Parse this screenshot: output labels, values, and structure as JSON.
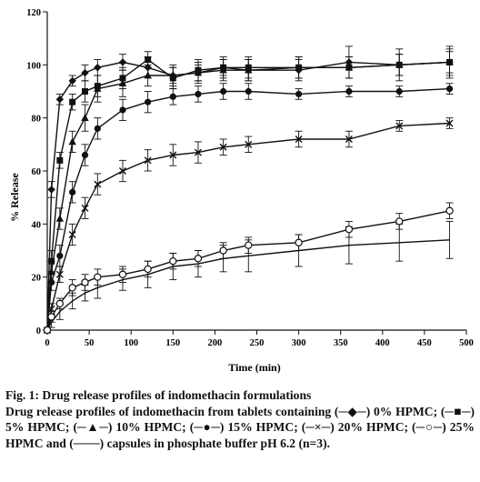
{
  "chart_data": {
    "type": "line",
    "title": "",
    "xlabel": "Time (min)",
    "ylabel": "% Release",
    "xlim": [
      0,
      500
    ],
    "ylim": [
      0,
      120
    ],
    "xticks": [
      0,
      50,
      100,
      150,
      200,
      250,
      300,
      350,
      400,
      450,
      500
    ],
    "yticks": [
      0,
      20,
      40,
      60,
      80,
      100,
      120
    ],
    "grid": false,
    "legend": "none",
    "series": [
      {
        "marker": "diamond",
        "x": [
          0,
          5,
          15,
          30,
          45,
          60,
          90,
          120,
          150,
          180,
          210,
          240,
          300,
          360,
          420,
          480
        ],
        "y": [
          0,
          53,
          87,
          94,
          97,
          99,
          101,
          99,
          96,
          97,
          99,
          98,
          98,
          101,
          100,
          101
        ],
        "err": [
          0,
          3,
          2,
          2,
          3,
          3,
          3,
          4,
          3,
          3,
          3,
          4,
          4,
          6,
          6,
          6
        ]
      },
      {
        "marker": "square",
        "x": [
          0,
          5,
          15,
          30,
          45,
          60,
          90,
          120,
          150,
          180,
          210,
          240,
          300,
          360,
          420,
          480
        ],
        "y": [
          0,
          26,
          64,
          86,
          90,
          92,
          95,
          102,
          95,
          98,
          99,
          99,
          99,
          99,
          100,
          101
        ],
        "err": [
          0,
          4,
          3,
          3,
          4,
          4,
          4,
          3,
          4,
          4,
          4,
          4,
          4,
          4,
          4,
          5
        ]
      },
      {
        "marker": "triangle",
        "x": [
          0,
          5,
          15,
          30,
          45,
          60,
          90,
          120,
          150,
          180,
          210,
          240,
          300,
          360,
          420,
          480
        ],
        "y": [
          0,
          22,
          42,
          71,
          80,
          91,
          93,
          96,
          96,
          97,
          98,
          98,
          99,
          99,
          100,
          101
        ],
        "err": [
          0,
          4,
          4,
          4,
          5,
          5,
          5,
          4,
          4,
          4,
          4,
          4,
          4,
          4,
          4,
          4
        ]
      },
      {
        "marker": "circle-filled",
        "x": [
          0,
          5,
          15,
          30,
          45,
          60,
          90,
          120,
          150,
          180,
          210,
          240,
          300,
          360,
          420,
          480
        ],
        "y": [
          0,
          18,
          28,
          52,
          66,
          76,
          83,
          86,
          88,
          89,
          90,
          90,
          89,
          90,
          90,
          91
        ],
        "err": [
          0,
          3,
          4,
          4,
          4,
          4,
          4,
          4,
          3,
          3,
          3,
          3,
          2,
          2,
          2,
          2
        ]
      },
      {
        "marker": "x",
        "x": [
          0,
          5,
          15,
          30,
          45,
          60,
          90,
          120,
          150,
          180,
          210,
          240,
          300,
          360,
          420,
          480
        ],
        "y": [
          0,
          8,
          21,
          36,
          46,
          55,
          60,
          64,
          66,
          67,
          69,
          70,
          72,
          72,
          77,
          78
        ],
        "err": [
          0,
          2,
          3,
          4,
          4,
          4,
          4,
          4,
          4,
          4,
          3,
          3,
          3,
          3,
          2,
          2
        ]
      },
      {
        "marker": "circle-open",
        "x": [
          0,
          5,
          15,
          30,
          45,
          60,
          90,
          120,
          150,
          180,
          210,
          240,
          300,
          360,
          420,
          480
        ],
        "y": [
          0,
          5,
          10,
          16,
          18,
          20,
          21,
          23,
          26,
          27,
          30,
          32,
          33,
          38,
          41,
          45
        ],
        "err": [
          0,
          2,
          2,
          3,
          3,
          3,
          3,
          3,
          3,
          3,
          3,
          3,
          3,
          3,
          3,
          3
        ]
      },
      {
        "marker": "none",
        "x": [
          0,
          5,
          15,
          30,
          45,
          60,
          90,
          120,
          150,
          180,
          210,
          240,
          300,
          360,
          420,
          480
        ],
        "y": [
          0,
          3,
          7,
          11,
          14,
          16,
          19,
          21,
          24,
          25,
          27,
          28,
          30,
          32,
          33,
          34
        ],
        "err": [
          0,
          2,
          3,
          3,
          3,
          4,
          4,
          5,
          5,
          5,
          5,
          6,
          6,
          7,
          7,
          7
        ]
      }
    ]
  },
  "caption": {
    "line1": "Fig. 1: Drug release profiles of indomethacin formulations",
    "line2": "Drug release profiles of indomethacin from tablets containing (─◆─) 0% HPMC; (─■─) 5% HPMC; (─▲─) 10% HPMC; (─●─) 15% HPMC; (─×─) 20% HPMC; (─○─) 25% HPMC and (───) capsules in phosphate buffer pH 6.2 (n=3)."
  }
}
